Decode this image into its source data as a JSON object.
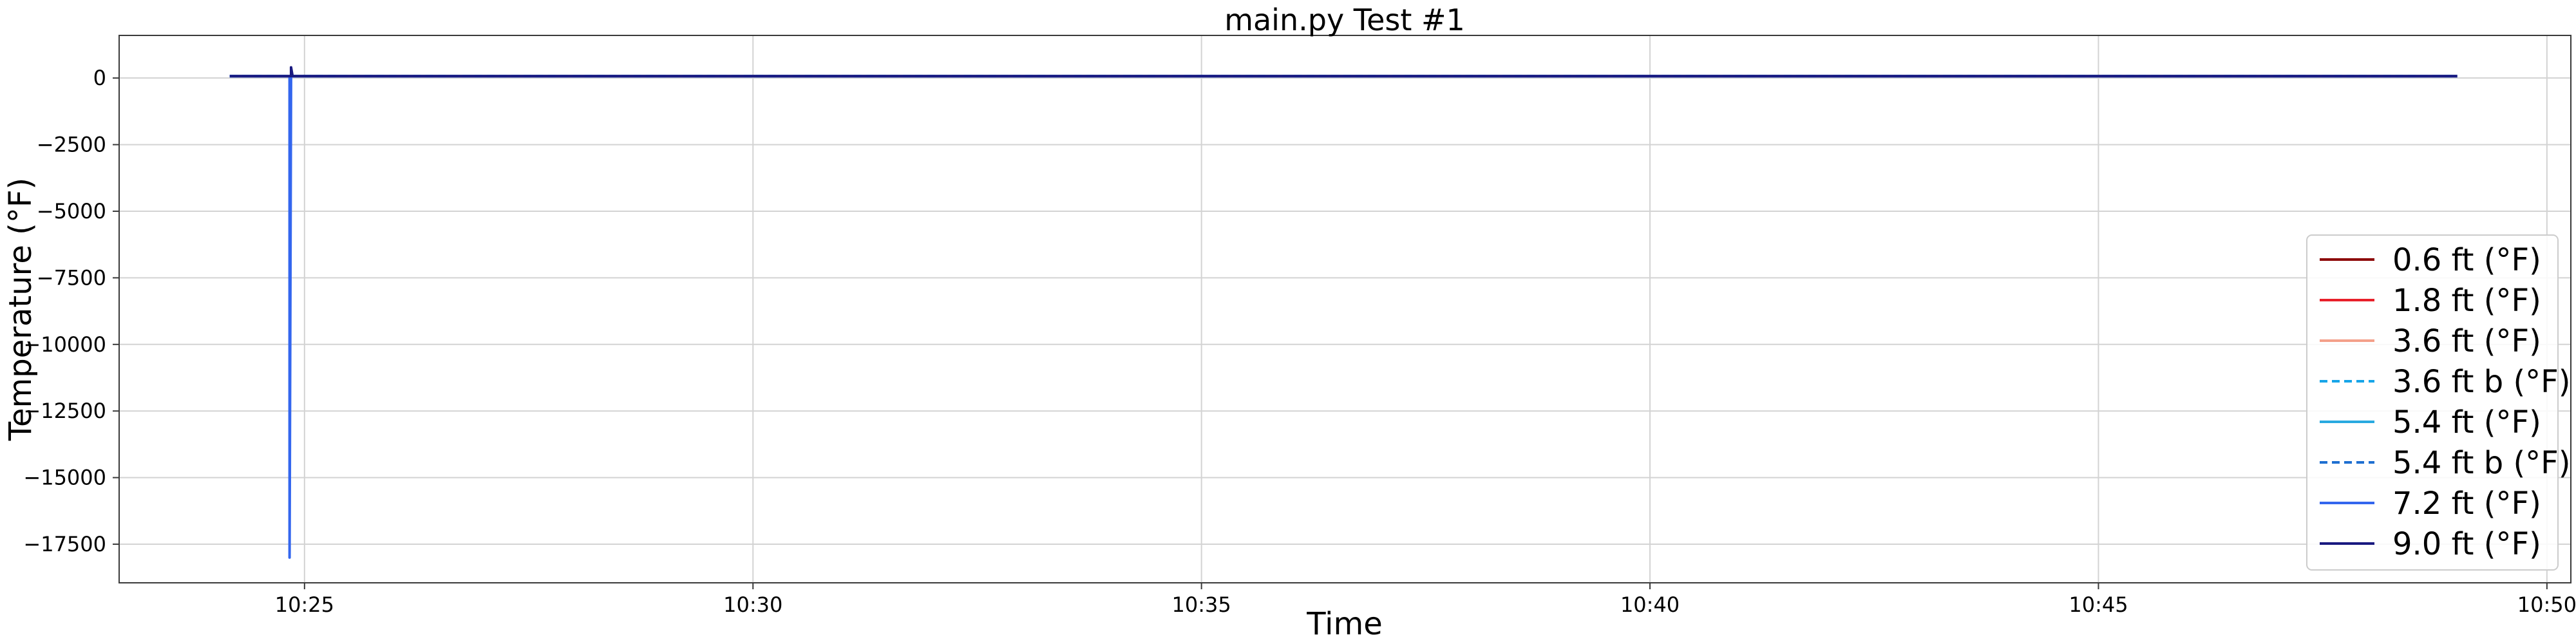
{
  "chart_data": {
    "type": "line",
    "title": "main.py Test #1",
    "xlabel": "Time",
    "ylabel": "Temperature (°F)",
    "x_range": [
      "10:22:56",
      "10:50:16"
    ],
    "ylim": [
      -18950,
      1600
    ],
    "grid": true,
    "legend_placement": "lower-right",
    "x_ticks": [
      {
        "t": "10:25:00",
        "label": "10:25"
      },
      {
        "t": "10:30:00",
        "label": "10:30"
      },
      {
        "t": "10:35:00",
        "label": "10:35"
      },
      {
        "t": "10:40:00",
        "label": "10:40"
      },
      {
        "t": "10:45:00",
        "label": "10:45"
      },
      {
        "t": "10:50:00",
        "label": "10:50"
      }
    ],
    "y_ticks": [
      {
        "v": 0,
        "label": "0"
      },
      {
        "v": -2500,
        "label": "−2500"
      },
      {
        "v": -5000,
        "label": "−5000"
      },
      {
        "v": -7500,
        "label": "−7500"
      },
      {
        "v": -10000,
        "label": "−10000"
      },
      {
        "v": -12500,
        "label": "−12500"
      },
      {
        "v": -15000,
        "label": "−15000"
      },
      {
        "v": -17500,
        "label": "−17500"
      }
    ],
    "series": [
      {
        "name": "0.6 ft (°F)",
        "color": "#8b0000",
        "dashed": false,
        "points": [
          [
            "10:24:10",
            72
          ],
          [
            "10:24:50",
            72
          ],
          [
            "10:24:51",
            72
          ],
          [
            "10:49:00",
            72
          ]
        ]
      },
      {
        "name": "1.8 ft (°F)",
        "color": "#e8202a",
        "dashed": false,
        "points": [
          [
            "10:24:10",
            72
          ],
          [
            "10:24:50",
            72
          ],
          [
            "10:24:51",
            72
          ],
          [
            "10:49:00",
            72
          ]
        ]
      },
      {
        "name": "3.6 ft (°F)",
        "color": "#f4a08a",
        "dashed": false,
        "points": [
          [
            "10:24:10",
            72
          ],
          [
            "10:24:50",
            72
          ],
          [
            "10:24:51",
            72
          ],
          [
            "10:49:00",
            72
          ]
        ]
      },
      {
        "name": "3.6 ft b (°F)",
        "color": "#17a5e8",
        "dashed": true,
        "points": [
          [
            "10:24:10",
            72
          ],
          [
            "10:24:50",
            72
          ],
          [
            "10:24:51",
            72
          ],
          [
            "10:49:00",
            72
          ]
        ]
      },
      {
        "name": "5.4 ft (°F)",
        "color": "#29a9e0",
        "dashed": false,
        "points": [
          [
            "10:24:10",
            72
          ],
          [
            "10:24:50",
            72
          ],
          [
            "10:24:51",
            72
          ],
          [
            "10:49:00",
            72
          ]
        ]
      },
      {
        "name": "5.4 ft b (°F)",
        "color": "#1f6fd1",
        "dashed": true,
        "points": [
          [
            "10:24:10",
            72
          ],
          [
            "10:24:50",
            72
          ],
          [
            "10:24:51",
            72
          ],
          [
            "10:49:00",
            72
          ]
        ]
      },
      {
        "name": "7.2 ft (°F)",
        "color": "#3366ee",
        "dashed": false,
        "points": [
          [
            "10:24:10",
            72
          ],
          [
            "10:24:50",
            72
          ],
          [
            "10:24:50",
            -18000
          ],
          [
            "10:24:51",
            72
          ],
          [
            "10:49:00",
            72
          ]
        ]
      },
      {
        "name": "9.0 ft (°F)",
        "color": "#1a1a80",
        "dashed": false,
        "points": [
          [
            "10:24:10",
            72
          ],
          [
            "10:24:51",
            72
          ],
          [
            "10:24:51",
            400
          ],
          [
            "10:24:52",
            72
          ],
          [
            "10:49:00",
            72
          ]
        ]
      }
    ]
  }
}
